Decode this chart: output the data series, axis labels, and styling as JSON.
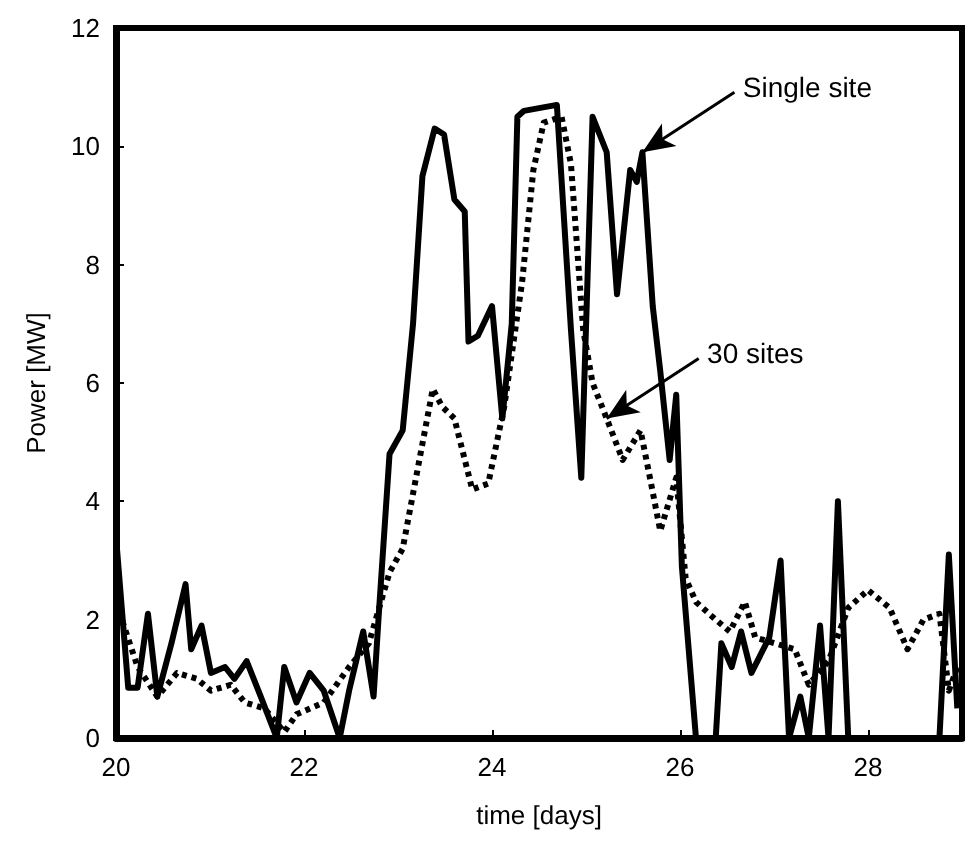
{
  "chart_data": {
    "type": "line",
    "xlabel": "time [days]",
    "ylabel": "Power [MW]",
    "xlim": [
      20,
      29
    ],
    "xticks": [
      20,
      22,
      24,
      26,
      28
    ],
    "ylim": [
      0,
      12
    ],
    "yticks": [
      0,
      2,
      4,
      6,
      8,
      10,
      12
    ],
    "grid": false,
    "marker": "none",
    "series": [
      {
        "color": "#000000",
        "line_style": "solid",
        "x": [
          20.0,
          20.13,
          20.23,
          20.34,
          20.44,
          20.59,
          20.74,
          20.8,
          20.91,
          21.01,
          21.16,
          21.26,
          21.39,
          21.54,
          21.71,
          21.79,
          21.92,
          22.06,
          22.21,
          22.38,
          22.48,
          22.63,
          22.74,
          22.8,
          22.91,
          23.05,
          23.16,
          23.26,
          23.39,
          23.49,
          23.6,
          23.71,
          23.75,
          23.85,
          24.0,
          24.11,
          24.21,
          24.27,
          24.34,
          24.69,
          24.84,
          24.95,
          25.07,
          25.22,
          25.33,
          25.47,
          25.54,
          25.6,
          25.71,
          25.79,
          25.89,
          25.96,
          26.02,
          26.17,
          26.38,
          26.44,
          26.55,
          26.65,
          26.76,
          26.95,
          27.07,
          27.16,
          27.28,
          27.37,
          27.49,
          27.58,
          27.68,
          27.79,
          28.76,
          28.86,
          28.95
        ],
        "values": [
          3.4,
          0.85,
          0.85,
          2.1,
          0.7,
          1.6,
          2.6,
          1.5,
          1.9,
          1.1,
          1.2,
          1.0,
          1.3,
          0.7,
          0,
          1.2,
          0.6,
          1.1,
          0.8,
          0,
          0.8,
          1.8,
          0.7,
          2.2,
          4.8,
          5.2,
          7.0,
          9.5,
          10.3,
          10.2,
          9.1,
          8.9,
          6.7,
          6.8,
          7.3,
          5.4,
          7.0,
          10.5,
          10.6,
          10.7,
          6.9,
          4.4,
          10.5,
          9.9,
          7.5,
          9.6,
          9.4,
          9.9,
          7.3,
          6.2,
          4.7,
          5.8,
          2.9,
          0,
          0,
          1.6,
          1.2,
          1.8,
          1.1,
          1.7,
          3.0,
          0,
          0.7,
          0,
          1.9,
          0,
          4.0,
          0,
          0,
          3.1,
          0.5
        ]
      },
      {
        "color": "#000000",
        "line_style": "dotted",
        "x": [
          20.0,
          20.23,
          20.44,
          20.65,
          20.86,
          21.01,
          21.22,
          21.37,
          21.58,
          21.79,
          21.92,
          22.21,
          22.48,
          22.69,
          22.91,
          23.05,
          23.18,
          23.37,
          23.47,
          23.6,
          23.79,
          23.96,
          24.13,
          24.32,
          24.44,
          24.55,
          24.74,
          24.84,
          24.97,
          25.07,
          25.22,
          25.39,
          25.58,
          25.68,
          25.79,
          25.96,
          26.06,
          26.17,
          26.38,
          26.53,
          26.69,
          26.8,
          27.01,
          27.22,
          27.37,
          27.58,
          27.79,
          28.0,
          28.23,
          28.42,
          28.59,
          28.76,
          28.86,
          28.95
        ],
        "values": [
          2.3,
          1.2,
          0.7,
          1.1,
          1.0,
          0.8,
          0.9,
          0.6,
          0.5,
          0.1,
          0.4,
          0.6,
          1.2,
          1.6,
          2.8,
          3.2,
          4.3,
          5.9,
          5.6,
          5.4,
          4.2,
          4.3,
          5.6,
          7.7,
          9.6,
          10.4,
          10.5,
          9.7,
          6.9,
          6.0,
          5.4,
          4.7,
          5.2,
          4.4,
          3.5,
          4.4,
          2.7,
          2.3,
          2.0,
          1.8,
          2.3,
          1.7,
          1.6,
          1.5,
          0.9,
          1.3,
          2.2,
          2.5,
          2.2,
          1.5,
          2.0,
          2.1,
          0.8,
          1.2
        ]
      }
    ],
    "annotations": [
      {
        "text": "Single site",
        "x": 25.6,
        "y": 9.9
      },
      {
        "text": "30 sites",
        "x": 25.22,
        "y": 5.4
      }
    ]
  }
}
